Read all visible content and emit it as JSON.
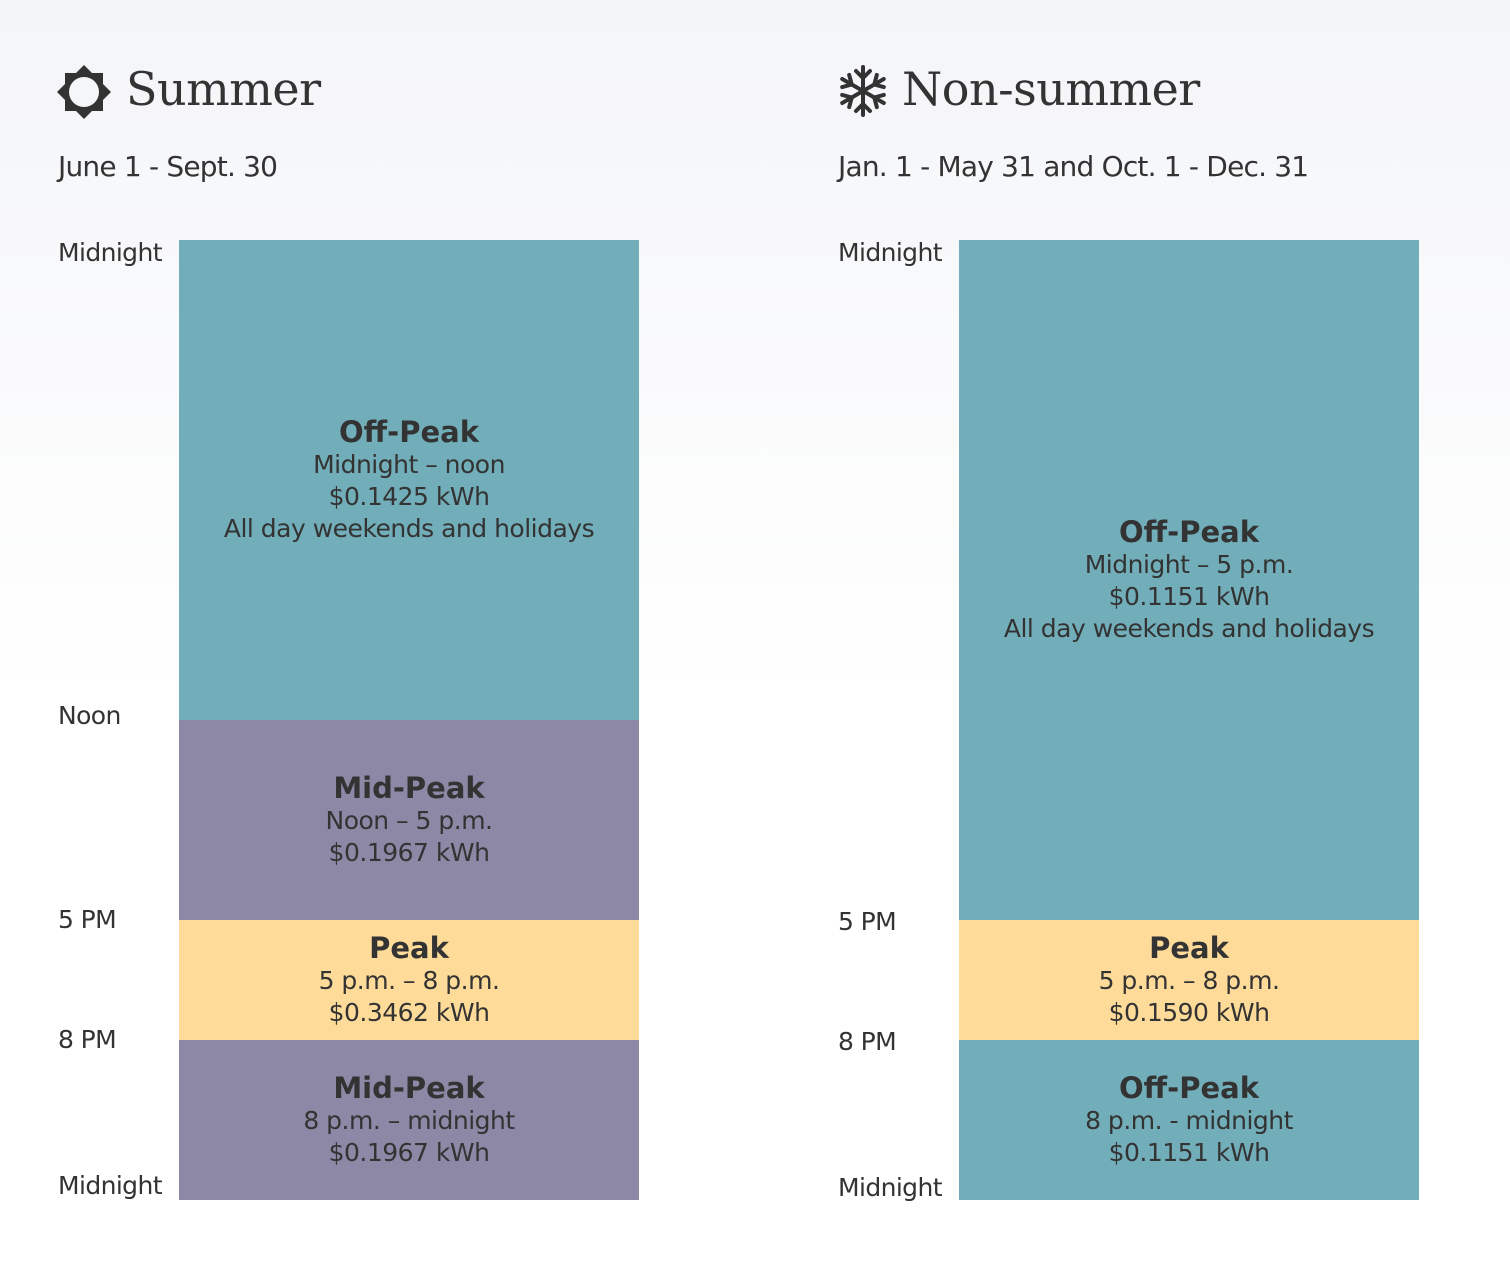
{
  "columns": [
    {
      "title": "Summer",
      "dates": "June 1 - Sept. 30",
      "time_labels": [
        "Midnight",
        "Noon",
        "5 PM",
        "8 PM",
        "Midnight"
      ],
      "blocks": [
        {
          "name": "Off-Peak",
          "lines": [
            "Midnight – noon",
            "$0.1425 kWh",
            "All day weekends and holidays"
          ]
        },
        {
          "name": "Mid-Peak",
          "lines": [
            "Noon – 5 p.m.",
            "$0.1967 kWh"
          ]
        },
        {
          "name": "Peak",
          "lines": [
            "5 p.m. – 8 p.m.",
            "$0.3462 kWh"
          ]
        },
        {
          "name": "Mid-Peak",
          "lines": [
            "8 p.m. – midnight",
            "$0.1967 kWh"
          ]
        }
      ]
    },
    {
      "title": "Non-summer",
      "dates": "Jan. 1 - May 31 and Oct. 1 - Dec. 31",
      "time_labels": [
        "Midnight",
        "5 PM",
        "8 PM",
        "Midnight"
      ],
      "blocks": [
        {
          "name": "Off-Peak",
          "lines": [
            "Midnight – 5 p.m.",
            "$0.1151 kWh",
            "All day weekends and holidays"
          ]
        },
        {
          "name": "Peak",
          "lines": [
            "5 p.m. – 8 p.m.",
            "$0.1590 kWh"
          ]
        },
        {
          "name": "Off-Peak",
          "lines": [
            "8 p.m. - midnight",
            "$0.1151 kWh"
          ]
        }
      ]
    }
  ]
}
